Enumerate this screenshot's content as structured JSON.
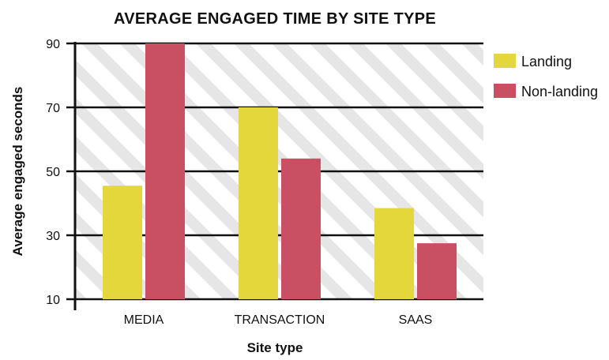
{
  "chart_data": {
    "type": "bar",
    "title": "AVERAGE ENGAGED TIME BY SITE TYPE",
    "xlabel": "Site type",
    "ylabel": "Average engaged seconds",
    "categories": [
      "MEDIA",
      "TRANSACTION",
      "SAAS"
    ],
    "series": [
      {
        "name": "Landing",
        "values": [
          45.5,
          70,
          38.5
        ],
        "color": "#e3d73b"
      },
      {
        "name": "Non-landing",
        "values": [
          90,
          54,
          27.5
        ],
        "color": "#c94f63"
      }
    ],
    "ylim": [
      10,
      90
    ],
    "yticks": [
      10,
      30,
      50,
      70,
      90
    ],
    "grid": true,
    "legend_position": "top-right",
    "background": "diagonal-stripes"
  }
}
